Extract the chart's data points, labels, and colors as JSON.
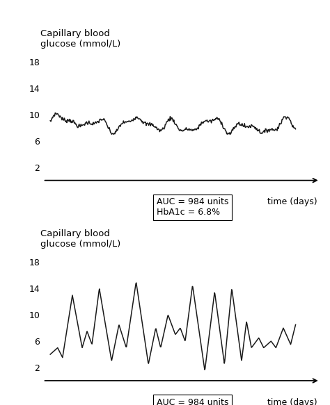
{
  "ylabel_line1": "Capillary blood",
  "ylabel_line2": "glucose (mmol/L)",
  "xlabel_text": "time (days)",
  "annotation": "AUC = 984 units\nHbA1c = 6.8%",
  "yticks": [
    2,
    6,
    10,
    14,
    18
  ],
  "ylim": [
    0,
    20
  ],
  "xlim": [
    -0.3,
    11.0
  ],
  "bg_color": "#ffffff",
  "line_color": "#1a1a1a",
  "font_size_ylabel": 9.5,
  "font_size_ticks": 9,
  "font_size_annotation": 9,
  "font_size_xlabel": 9
}
